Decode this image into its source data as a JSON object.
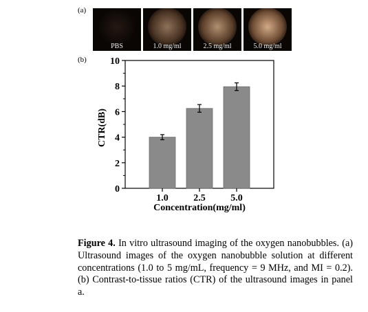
{
  "panel_a_label": "(a)",
  "panel_b_label": "(b)",
  "ultrasound_images": [
    {
      "label": "PBS",
      "brightness": 0.15
    },
    {
      "label": "1.0 mg/ml",
      "brightness": 0.45
    },
    {
      "label": "2.5 mg/ml",
      "brightness": 0.65
    },
    {
      "label": "5.0 mg/ml",
      "brightness": 0.85
    }
  ],
  "chart_data": {
    "type": "bar",
    "categories": [
      "1.0",
      "2.5",
      "5.0"
    ],
    "values": [
      4.0,
      6.25,
      7.95
    ],
    "errors": [
      0.2,
      0.3,
      0.3
    ],
    "xlabel": "Concentration(mg/ml)",
    "ylabel": "CTR(dB)",
    "ylim": [
      0,
      10
    ],
    "yticks": [
      0,
      2,
      4,
      6,
      8,
      10
    ],
    "bar_color": "#8a8a8a",
    "grid": false
  },
  "caption": {
    "figure_label": "Figure 4.",
    "text": " In vitro ultrasound imaging of the oxygen nanobubbles. (a) Ultrasound images of the oxygen nanobubble solution at different concentrations (1.0 to 5 mg/mL, frequency = 9 MHz, and MI = 0.2). (b) Contrast-to-tissue ratios (CTR) of the ultrasound images in panel a."
  }
}
